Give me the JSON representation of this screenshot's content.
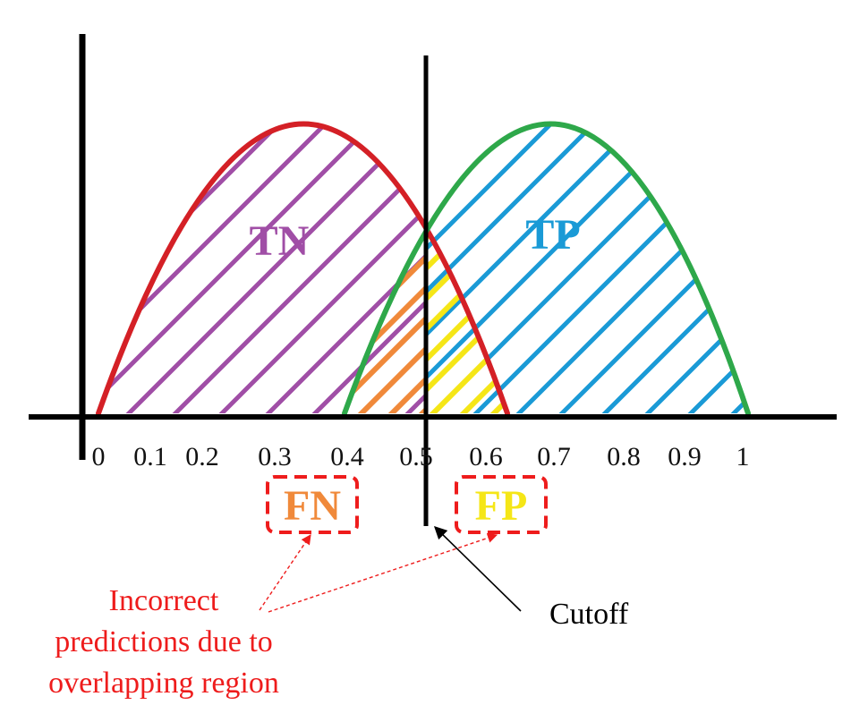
{
  "ticks": [
    "0",
    "0.1",
    "0.2",
    "0.3",
    "0.4",
    "0.5",
    "0.6",
    "0.7",
    "0.8",
    "0.9",
    "1"
  ],
  "labels": {
    "tn": "TN",
    "tp": "TP",
    "fn": "FN",
    "fp": "FP"
  },
  "annotation": {
    "line1": "Incorrect",
    "line2": "predictions due to",
    "line3": "overlapping region"
  },
  "cutoff_label": "Cutoff",
  "colors": {
    "negative_curve": "#d42026",
    "positive_curve": "#2ea84a",
    "tn_hatch": "#a04ea6",
    "tp_hatch": "#1a9ad6",
    "fn_hatch": "#f0893a",
    "fp_hatch": "#f5e617",
    "annotation": "#ee1c1c",
    "axis": "#000000"
  }
}
